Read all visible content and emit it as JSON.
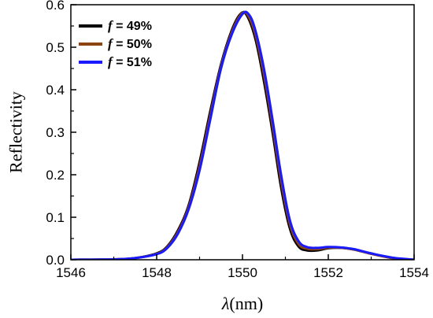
{
  "chart_data": {
    "type": "line",
    "xlabel_symbol": "λ",
    "xlabel_unit": "(nm)",
    "ylabel": "Reflectivity",
    "xlim": [
      1546,
      1554
    ],
    "ylim": [
      0.0,
      0.6
    ],
    "xticks": [
      1546,
      1548,
      1550,
      1552,
      1554
    ],
    "yticks": [
      0.0,
      0.1,
      0.2,
      0.3,
      0.4,
      0.5,
      0.6
    ],
    "ytick_labels": [
      "0.0",
      "0.1",
      "0.2",
      "0.3",
      "0.4",
      "0.5",
      "0.6"
    ],
    "legend_position": "top-left",
    "grid": false,
    "series": [
      {
        "name": "f = 49%",
        "legend_prefix": "f",
        "legend_value": " = 49%",
        "color": "#000000",
        "x": [
          1546,
          1547,
          1547.5,
          1548,
          1548.25,
          1548.5,
          1548.75,
          1549,
          1549.25,
          1549.5,
          1549.75,
          1549.95,
          1550.1,
          1550.3,
          1550.5,
          1550.7,
          1550.9,
          1551.1,
          1551.3,
          1551.5,
          1551.75,
          1552,
          1552.3,
          1552.6,
          1553,
          1553.5,
          1554
        ],
        "y": [
          0.0,
          0.001,
          0.004,
          0.015,
          0.032,
          0.07,
          0.13,
          0.23,
          0.35,
          0.46,
          0.54,
          0.578,
          0.575,
          0.52,
          0.42,
          0.3,
          0.17,
          0.075,
          0.032,
          0.022,
          0.022,
          0.027,
          0.028,
          0.024,
          0.014,
          0.004,
          0.0
        ]
      },
      {
        "name": "f = 50%",
        "legend_prefix": "f",
        "legend_value": " = 50%",
        "color": "#8b4513",
        "x": [
          1546,
          1547,
          1547.5,
          1548,
          1548.25,
          1548.5,
          1548.75,
          1549,
          1549.25,
          1549.5,
          1549.75,
          1549.97,
          1550.12,
          1550.3,
          1550.5,
          1550.7,
          1550.9,
          1551.1,
          1551.3,
          1551.5,
          1551.75,
          1552,
          1552.3,
          1552.6,
          1553,
          1553.5,
          1554
        ],
        "y": [
          0.0,
          0.001,
          0.004,
          0.014,
          0.03,
          0.066,
          0.125,
          0.22,
          0.34,
          0.455,
          0.535,
          0.578,
          0.576,
          0.53,
          0.435,
          0.315,
          0.185,
          0.085,
          0.038,
          0.026,
          0.025,
          0.028,
          0.028,
          0.024,
          0.014,
          0.004,
          0.0
        ]
      },
      {
        "name": "f = 51%",
        "legend_prefix": "f",
        "legend_value": " = 51%",
        "color": "#1a1aff",
        "x": [
          1546,
          1547,
          1547.5,
          1548,
          1548.25,
          1548.5,
          1548.75,
          1549,
          1549.25,
          1549.5,
          1549.75,
          1550,
          1550.15,
          1550.3,
          1550.5,
          1550.7,
          1550.9,
          1551.1,
          1551.3,
          1551.5,
          1551.75,
          1552,
          1552.3,
          1552.6,
          1553,
          1553.5,
          1554
        ],
        "y": [
          0.0,
          0.001,
          0.004,
          0.013,
          0.028,
          0.062,
          0.12,
          0.21,
          0.33,
          0.45,
          0.53,
          0.578,
          0.577,
          0.54,
          0.45,
          0.33,
          0.2,
          0.095,
          0.045,
          0.03,
          0.028,
          0.03,
          0.029,
          0.025,
          0.015,
          0.005,
          0.0
        ]
      }
    ]
  }
}
